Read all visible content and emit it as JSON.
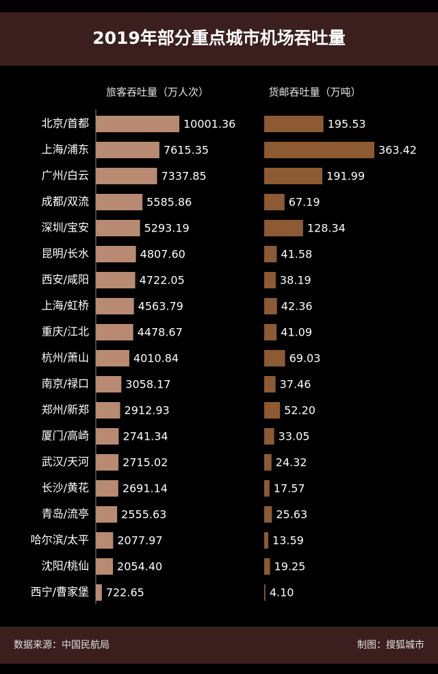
{
  "chart_data": {
    "type": "bar",
    "orientation": "horizontal",
    "title": "2019年部分重点城市机场吞吐量",
    "categories": [
      "北京/首都",
      "上海/浦东",
      "广州/白云",
      "成都/双流",
      "深圳/宝安",
      "昆明/长水",
      "西安/咸阳",
      "上海/虹桥",
      "重庆/江北",
      "杭州/萧山",
      "南京/禄口",
      "郑州/新郑",
      "厦门/高崎",
      "武汉/天河",
      "长沙/黄花",
      "青岛/流亭",
      "哈尔滨/太平",
      "沈阳/桃仙",
      "西宁/曹家堡"
    ],
    "series": [
      {
        "name": "旅客吞吐量（万人次）",
        "color": "#b88a72",
        "values": [
          10001.36,
          7615.35,
          7337.85,
          5585.86,
          5293.19,
          4807.6,
          4722.05,
          4563.79,
          4478.67,
          4010.84,
          3058.17,
          2912.93,
          2741.34,
          2715.02,
          2691.14,
          2555.63,
          2077.97,
          2054.4,
          722.65
        ],
        "value_labels": [
          "10001.36",
          "7615.35",
          "7337.85",
          "5585.86",
          "5293.19",
          "4807.60",
          "4722.05",
          "4563.79",
          "4478.67",
          "4010.84",
          "3058.17",
          "2912.93",
          "2741.34",
          "2715.02",
          "2691.14",
          "2555.63",
          "2077.97",
          "2054.40",
          "722.65"
        ]
      },
      {
        "name": "货邮吞吐量（万吨）",
        "color": "#8c5a33",
        "values": [
          195.53,
          363.42,
          191.99,
          67.19,
          128.34,
          41.58,
          38.19,
          42.36,
          41.09,
          69.03,
          37.46,
          52.2,
          33.05,
          24.32,
          17.57,
          25.63,
          13.59,
          19.25,
          4.1
        ],
        "value_labels": [
          "195.53",
          "363.42",
          "191.99",
          "67.19",
          "128.34",
          "41.58",
          "38.19",
          "42.36",
          "41.09",
          "69.03",
          "37.46",
          "52.20",
          "33.05",
          "24.32",
          "17.57",
          "25.63",
          "13.59",
          "19.25",
          "4.10"
        ]
      }
    ]
  },
  "footer": {
    "source": "数据来源：中国民航局",
    "credit": "制图：搜狐城市"
  }
}
